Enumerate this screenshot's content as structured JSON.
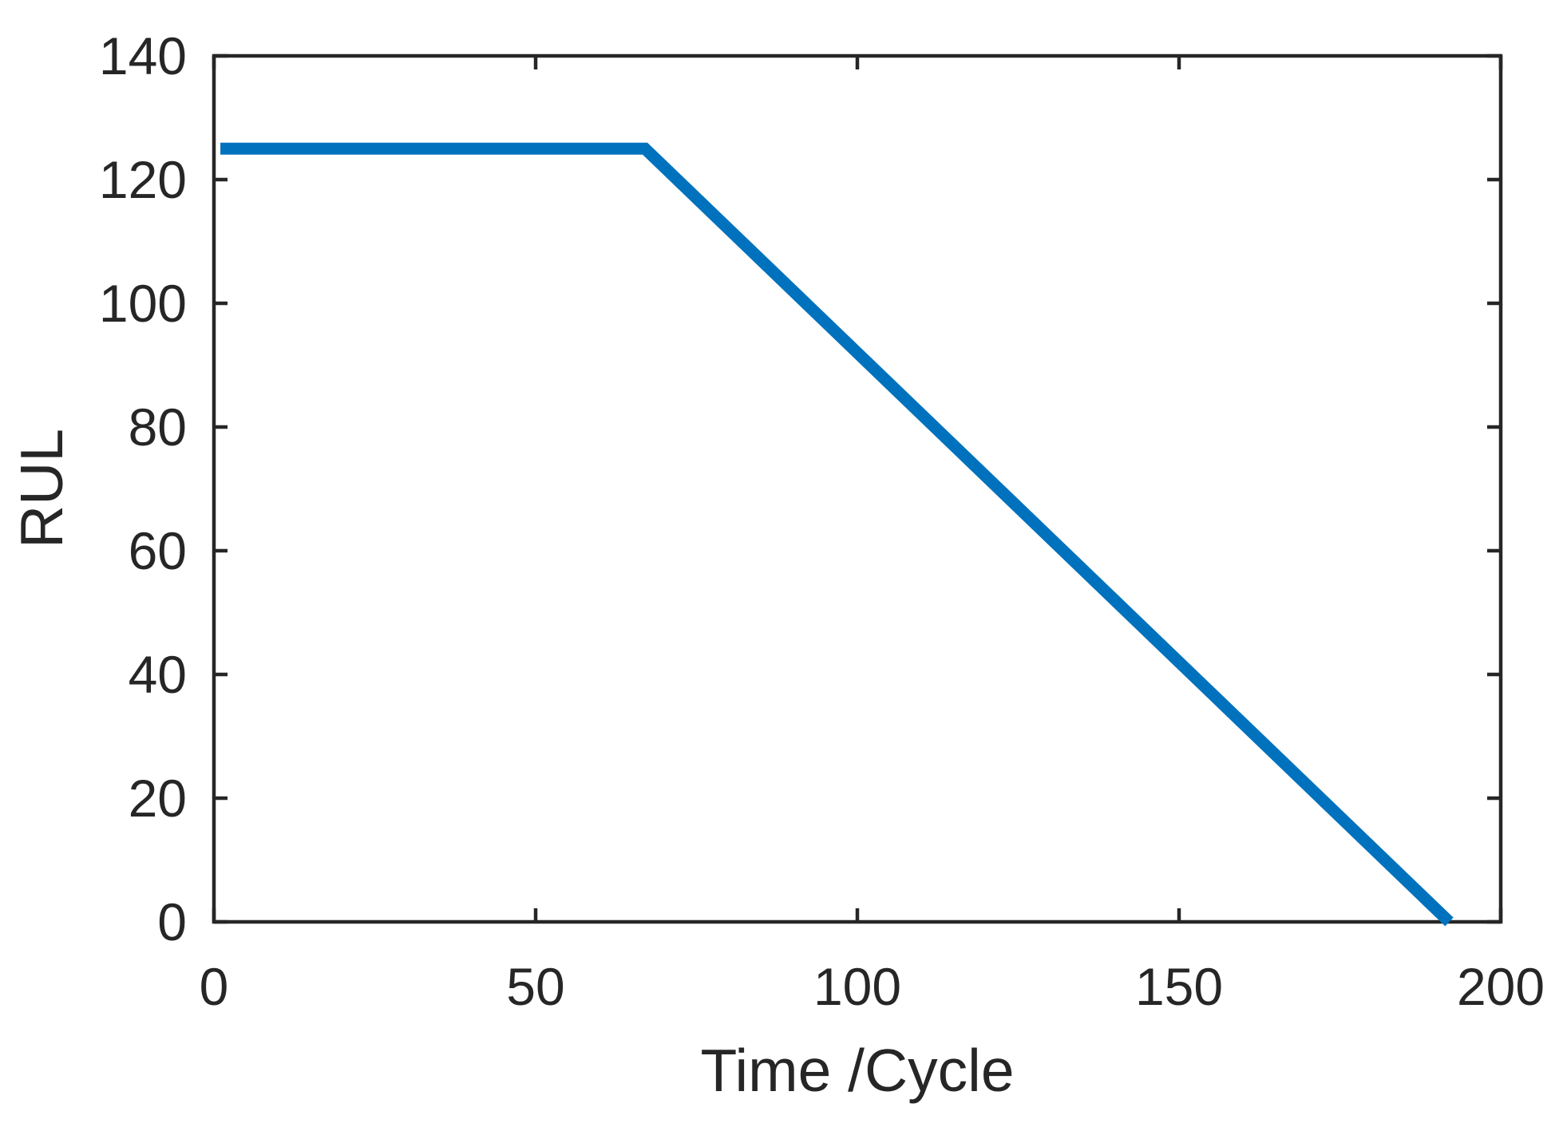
{
  "chart_data": {
    "type": "line",
    "title": "",
    "xlabel": "Time /Cycle",
    "ylabel": "RUL",
    "xlim": [
      0,
      200
    ],
    "ylim": [
      0,
      140
    ],
    "xticks": [
      0,
      50,
      100,
      150,
      200
    ],
    "yticks": [
      0,
      20,
      40,
      60,
      80,
      100,
      120,
      140
    ],
    "grid": false,
    "box": true,
    "tick_direction": "in",
    "legend": "none",
    "axis_color": "#262626",
    "background": "#ffffff",
    "series": [
      {
        "name": "RUL",
        "x": [
          1,
          67,
          192
        ],
        "y": [
          125,
          125,
          0
        ],
        "color": "#0072BD",
        "line_width": 15
      }
    ]
  }
}
